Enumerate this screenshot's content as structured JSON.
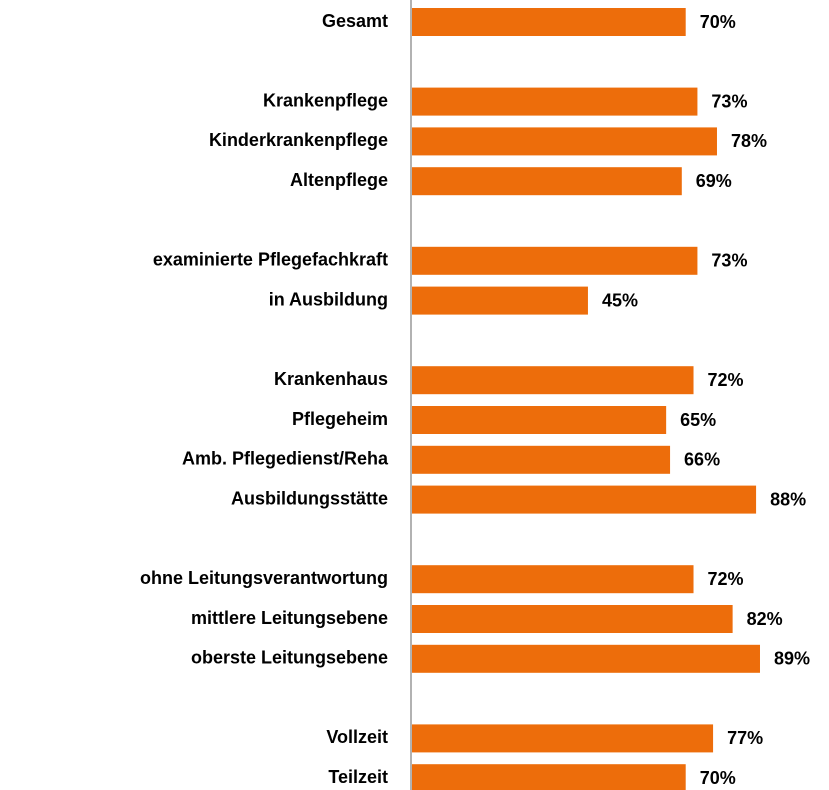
{
  "chart_data": {
    "type": "bar",
    "orientation": "horizontal",
    "color": "#ED6D0B",
    "categories": [
      "Gesamt",
      null,
      "Krankenpflege",
      "Kinderkrankenpflege",
      "Altenpflege",
      null,
      "examinierte Pflegefachkraft",
      "in Ausbildung",
      null,
      "Krankenhaus",
      "Pflegeheim",
      "Amb. Pflegedienst/Reha",
      "Ausbildungsstätte",
      null,
      "ohne Leitungsverantwortung",
      "mittlere Leitungsebene",
      "oberste Leitungsebene",
      null,
      "Vollzeit",
      "Teilzeit"
    ],
    "values": [
      70,
      null,
      73,
      78,
      69,
      null,
      73,
      45,
      null,
      72,
      65,
      66,
      88,
      null,
      72,
      82,
      89,
      null,
      77,
      70
    ],
    "value_labels": [
      "70%",
      null,
      "73%",
      "78%",
      "69%",
      null,
      "73%",
      "45%",
      null,
      "72%",
      "65%",
      "66%",
      "88%",
      null,
      "72%",
      "82%",
      "89%",
      null,
      "77%",
      "70%"
    ],
    "xlim": [
      0,
      100
    ]
  }
}
